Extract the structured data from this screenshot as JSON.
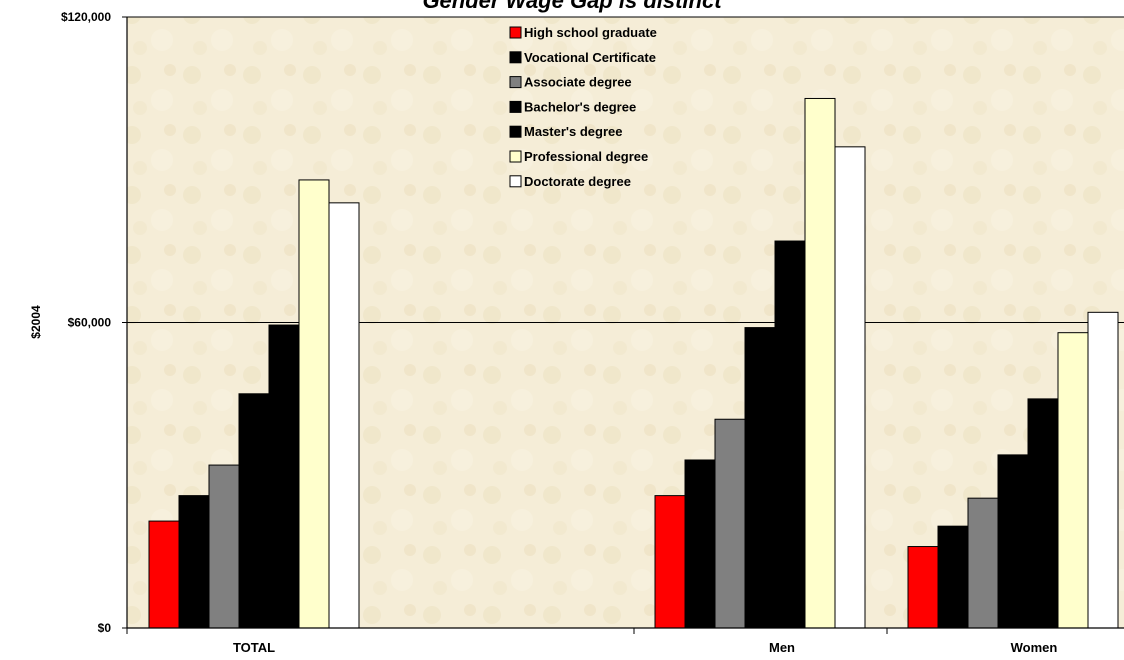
{
  "chart_data": {
    "type": "bar",
    "title": "Gender Wage Gap is distinct",
    "ylabel": "$2004",
    "xlabel": "",
    "ylim": [
      0,
      120000
    ],
    "y_ticks": [
      {
        "value": 0,
        "label": "$0"
      },
      {
        "value": 60000,
        "label": "$60,000"
      },
      {
        "value": 120000,
        "label": "$120,000"
      }
    ],
    "grid": true,
    "legend_position": "top-center",
    "categories": [
      "TOTAL",
      "Men",
      "Women"
    ],
    "series": [
      {
        "name": "High school graduate",
        "color": "#ff0000",
        "values": [
          21000,
          26000,
          16000
        ]
      },
      {
        "name": "Vocational Certificate",
        "color": "#000000",
        "values": [
          26000,
          33000,
          20000
        ]
      },
      {
        "name": "Associate degree",
        "color": "#808080",
        "values": [
          32000,
          41000,
          25500
        ]
      },
      {
        "name": "Bachelor's degree",
        "color": "#000000",
        "values": [
          46000,
          59000,
          34000
        ]
      },
      {
        "name": "Master's degree",
        "color": "#000000",
        "values": [
          59500,
          76000,
          45000
        ]
      },
      {
        "name": "Professional degree",
        "color": "#ffffcc",
        "values": [
          88000,
          104000,
          58000
        ]
      },
      {
        "name": "Doctorate degree",
        "color": "#ffffff",
        "values": [
          83500,
          94500,
          62000
        ]
      }
    ],
    "plot_background": "#f5edd7"
  }
}
